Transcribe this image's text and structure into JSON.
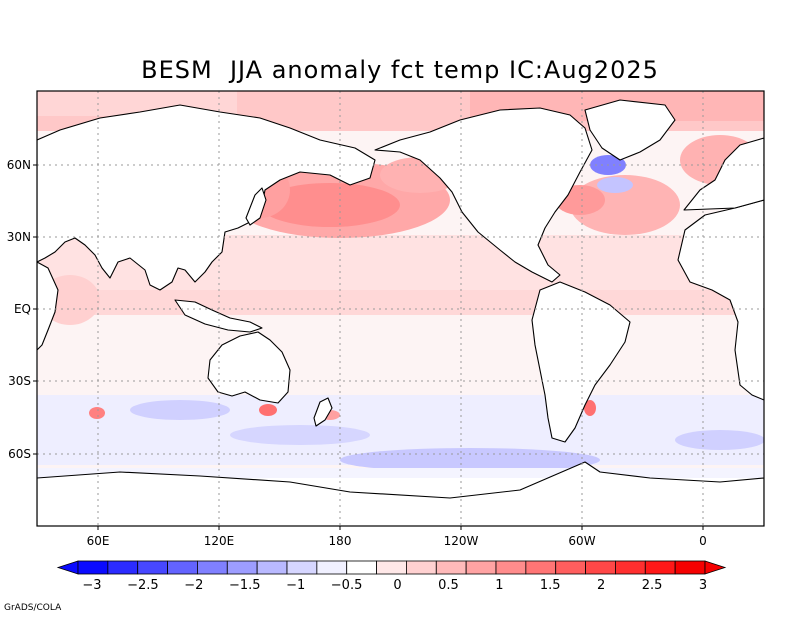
{
  "title": "BESM  JJA anomaly fct temp IC:Aug2025",
  "credit": "GrADS/COLA",
  "lat_labels": [
    "60N",
    "30N",
    "EQ",
    "30S",
    "60S"
  ],
  "lon_labels": [
    "60E",
    "120E",
    "180",
    "120W",
    "60W",
    "0"
  ],
  "colorbar": {
    "labels": [
      "-3",
      "-2.5",
      "-2",
      "-1.5",
      "-1",
      "-0.5",
      "0",
      "0.5",
      "1",
      "1.5",
      "2",
      "2.5",
      "3"
    ],
    "colors": [
      "#0a0aff",
      "#2b2bff",
      "#4747ff",
      "#6363ff",
      "#8080ff",
      "#9d9dff",
      "#b9b9ff",
      "#d6d6ff",
      "#f0f0ff",
      "#ffffff",
      "#ffe8e8",
      "#ffd1d1",
      "#ffbaba",
      "#ffa3a3",
      "#ff8c8c",
      "#ff7575",
      "#ff5e5e",
      "#ff4747",
      "#ff2f2f",
      "#ff1818",
      "#f50000"
    ]
  },
  "colors": {
    "frame": "#000000",
    "grid": "#9a9a9a",
    "land": "#ffffff"
  }
}
